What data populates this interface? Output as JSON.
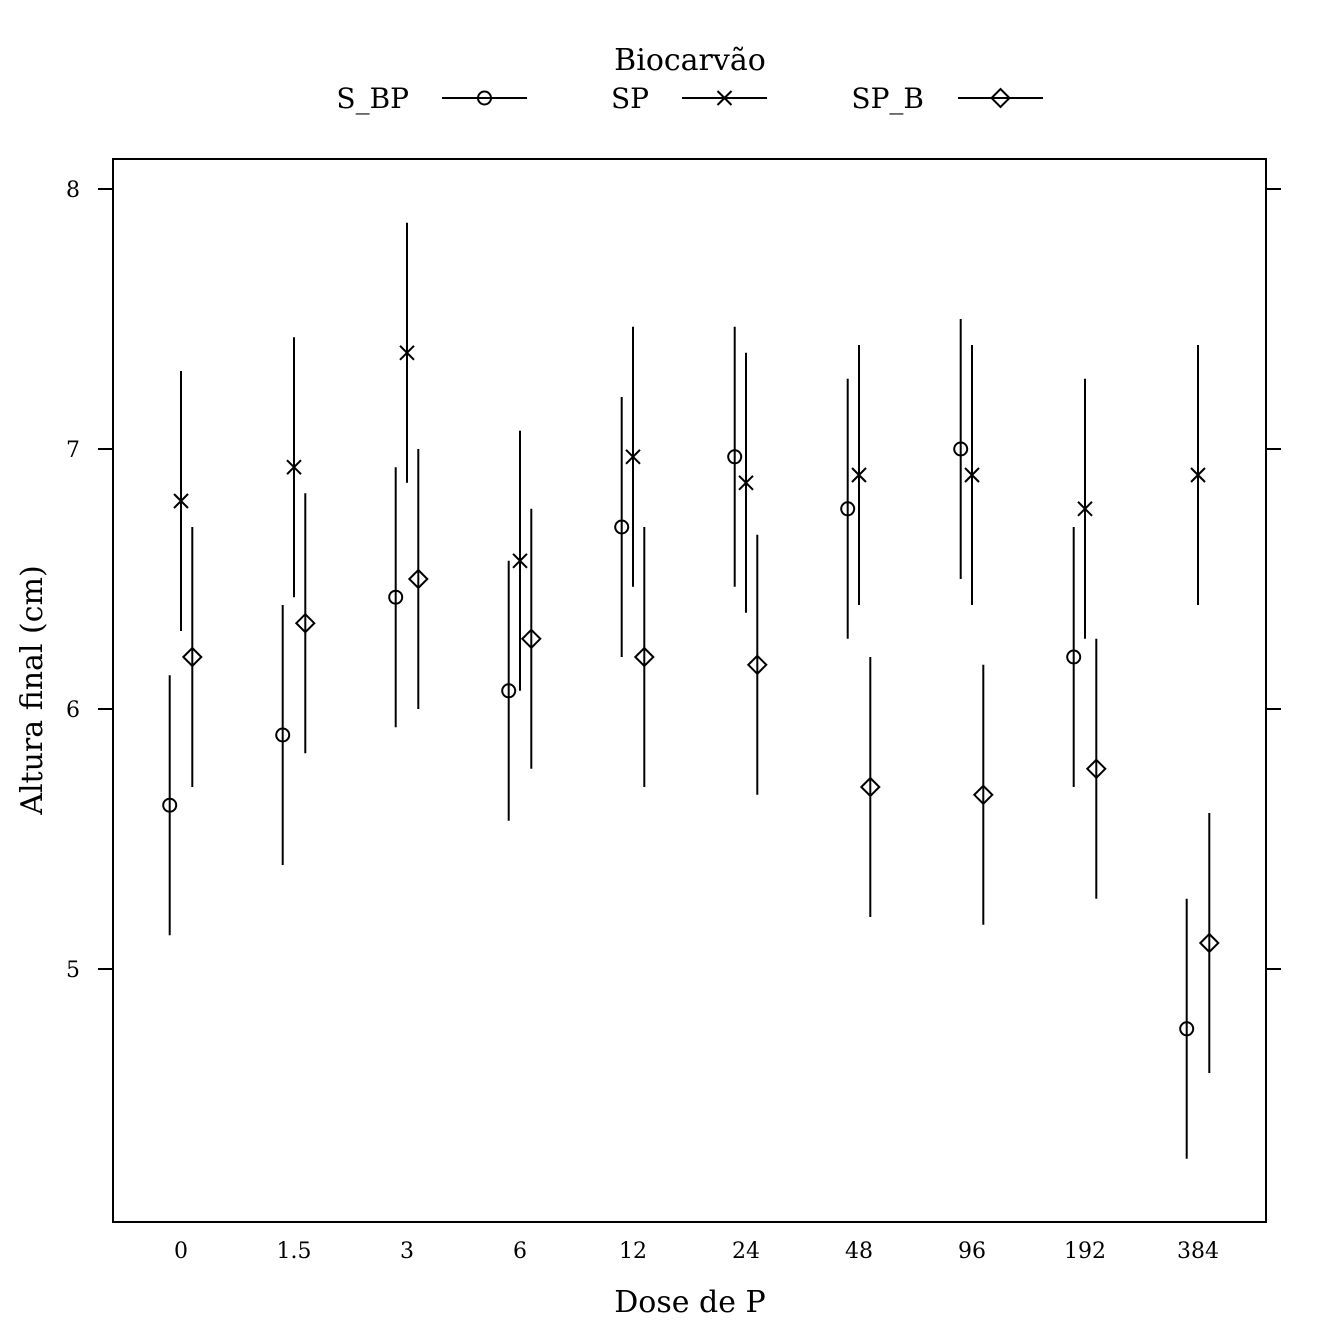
{
  "chart_data": {
    "type": "scatter",
    "variant": "point-with-error-bars",
    "xlabel": "Dose de P",
    "ylabel": "Altura final (cm)",
    "categories": [
      "0",
      "1.5",
      "3",
      "6",
      "12",
      "24",
      "48",
      "96",
      "192",
      "384"
    ],
    "yticks": [
      5,
      6,
      7,
      8
    ],
    "ylim": [
      4.0,
      8.12
    ],
    "grid": false,
    "legend": {
      "title": "Biocarvão",
      "position": "top-center"
    },
    "series": [
      {
        "name": "S_BP",
        "marker": "circle",
        "values": [
          5.63,
          5.9,
          6.43,
          6.07,
          6.7,
          6.97,
          6.77,
          7.0,
          6.2,
          4.77
        ],
        "lower": [
          5.13,
          5.4,
          5.93,
          5.57,
          6.2,
          6.47,
          6.27,
          6.5,
          5.7,
          4.27
        ],
        "upper": [
          6.13,
          6.4,
          6.93,
          6.57,
          7.2,
          7.47,
          7.27,
          7.5,
          6.7,
          5.27
        ]
      },
      {
        "name": "SP",
        "marker": "x",
        "values": [
          6.8,
          6.93,
          7.37,
          6.57,
          6.97,
          6.87,
          6.9,
          6.9,
          6.77,
          6.9
        ],
        "lower": [
          6.3,
          6.43,
          6.87,
          6.07,
          6.47,
          6.37,
          6.4,
          6.4,
          6.27,
          6.4
        ],
        "upper": [
          7.3,
          7.43,
          7.87,
          7.07,
          7.47,
          7.37,
          7.4,
          7.4,
          7.27,
          7.4
        ]
      },
      {
        "name": "SP_B",
        "marker": "diamond",
        "values": [
          6.2,
          6.33,
          6.5,
          6.27,
          6.2,
          6.17,
          5.7,
          5.67,
          5.77,
          5.1
        ],
        "lower": [
          5.7,
          5.83,
          6.0,
          5.77,
          5.7,
          5.67,
          5.2,
          5.17,
          5.27,
          4.6
        ],
        "upper": [
          6.7,
          6.83,
          7.0,
          6.77,
          6.7,
          6.67,
          6.2,
          6.17,
          6.27,
          5.6
        ]
      }
    ]
  }
}
